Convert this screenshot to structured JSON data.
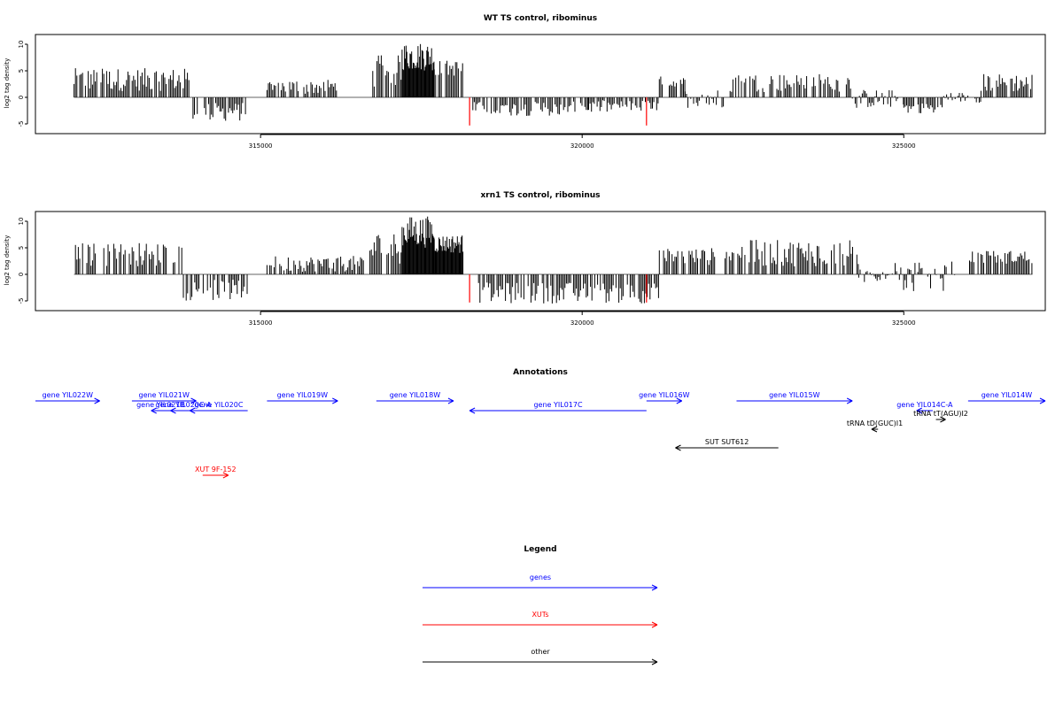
{
  "chart_data": [
    {
      "type": "bar",
      "title": "WT TS control, ribominus",
      "ylabel": "log2 tag density",
      "xlim": [
        311500,
        327200
      ],
      "ylim": [
        -5.5,
        10.5
      ],
      "x_ticks": [
        315000,
        320000,
        325000
      ],
      "y_ticks": [
        -5,
        0,
        5,
        10
      ],
      "baseline_color": "#999999",
      "bar_color": "#000000",
      "marker_color": "#ff0000",
      "markers": [
        {
          "x": 318250,
          "y": -5.3
        },
        {
          "x": 321000,
          "y": -5.3
        }
      ],
      "segments": [
        {
          "from": 312100,
          "to": 313900,
          "min": 1.2,
          "max": 5.5
        },
        {
          "from": 313950,
          "to": 314800,
          "min": -4.5,
          "max": -1.0
        },
        {
          "from": 315100,
          "to": 316200,
          "min": 0.5,
          "max": 3.5
        },
        {
          "from": 316700,
          "to": 317200,
          "min": 2.0,
          "max": 8.0
        },
        {
          "from": 317200,
          "to": 317700,
          "min": 5.0,
          "max": 10.5
        },
        {
          "from": 317700,
          "to": 318150,
          "min": 4.0,
          "max": 7.0
        },
        {
          "from": 318300,
          "to": 320100,
          "min": -3.5,
          "max": -0.8
        },
        {
          "from": 320100,
          "to": 321200,
          "min": -3.0,
          "max": -0.5
        },
        {
          "from": 321200,
          "to": 321600,
          "min": 1.5,
          "max": 4.0
        },
        {
          "from": 321600,
          "to": 322200,
          "min": -2.0,
          "max": 1.5
        },
        {
          "from": 322300,
          "to": 324200,
          "min": 1.0,
          "max": 4.5
        },
        {
          "from": 324200,
          "to": 325000,
          "min": -2.0,
          "max": 1.5
        },
        {
          "from": 325000,
          "to": 325600,
          "min": -3.0,
          "max": -1.0
        },
        {
          "from": 325600,
          "to": 326200,
          "min": -1.0,
          "max": 1.0
        },
        {
          "from": 326200,
          "to": 327000,
          "min": 1.0,
          "max": 4.5
        }
      ]
    },
    {
      "type": "bar",
      "title": "xrn1 TS control, ribominus",
      "ylabel": "log2 tag density",
      "xlim": [
        311500,
        327200
      ],
      "ylim": [
        -5.5,
        10.5
      ],
      "x_ticks": [
        315000,
        320000,
        325000
      ],
      "y_ticks": [
        -5,
        0,
        5,
        10
      ],
      "baseline_color": "#999999",
      "bar_color": "#000000",
      "marker_color": "#ff0000",
      "markers": [
        {
          "x": 318250,
          "y": -5.3
        },
        {
          "x": 321000,
          "y": -5.3
        }
      ],
      "segments": [
        {
          "from": 312100,
          "to": 313800,
          "min": 1.5,
          "max": 6.0
        },
        {
          "from": 313800,
          "to": 314800,
          "min": -5.0,
          "max": -1.0
        },
        {
          "from": 315100,
          "to": 316600,
          "min": 0.5,
          "max": 3.5
        },
        {
          "from": 316700,
          "to": 317200,
          "min": 2.0,
          "max": 8.0
        },
        {
          "from": 317200,
          "to": 317700,
          "min": 5.0,
          "max": 11.0
        },
        {
          "from": 317700,
          "to": 318150,
          "min": 4.0,
          "max": 7.5
        },
        {
          "from": 318300,
          "to": 321200,
          "min": -5.5,
          "max": -1.5
        },
        {
          "from": 321200,
          "to": 322100,
          "min": 1.5,
          "max": 5.0
        },
        {
          "from": 322200,
          "to": 324300,
          "min": 1.5,
          "max": 6.5
        },
        {
          "from": 324300,
          "to": 324800,
          "min": -1.5,
          "max": 1.0
        },
        {
          "from": 324800,
          "to": 325800,
          "min": -3.5,
          "max": 2.5
        },
        {
          "from": 326000,
          "to": 327000,
          "min": 2.0,
          "max": 4.5
        }
      ]
    }
  ],
  "annotations": {
    "title": "Annotations",
    "features": [
      {
        "label": "gene YIL022W",
        "start": 311500,
        "end": 312500,
        "strand": "+",
        "color": "#0000ff",
        "row": 0
      },
      {
        "label": "gene YIL021W",
        "start": 313000,
        "end": 314000,
        "strand": "+",
        "color": "#0000ff",
        "row": 0
      },
      {
        "label": "gene YIL021B",
        "start": 313300,
        "end": 313600,
        "strand": "-",
        "color": "#0000ff",
        "row": 1
      },
      {
        "label": "gene YIL020C-A",
        "start": 313600,
        "end": 314000,
        "strand": "-",
        "color": "#0000ff",
        "row": 1
      },
      {
        "label": "gene YIL020C",
        "start": 313900,
        "end": 314800,
        "strand": "-",
        "color": "#0000ff",
        "row": 1
      },
      {
        "label": "gene YIL019W",
        "start": 315100,
        "end": 316200,
        "strand": "+",
        "color": "#0000ff",
        "row": 0
      },
      {
        "label": "gene YIL018W",
        "start": 316800,
        "end": 318000,
        "strand": "+",
        "color": "#0000ff",
        "row": 0
      },
      {
        "label": "gene YIL017C",
        "start": 318250,
        "end": 321000,
        "strand": "-",
        "color": "#0000ff",
        "row": 1
      },
      {
        "label": "gene YIL016W",
        "start": 321000,
        "end": 321550,
        "strand": "+",
        "color": "#0000ff",
        "row": 0
      },
      {
        "label": "gene YIL015W",
        "start": 322400,
        "end": 324200,
        "strand": "+",
        "color": "#0000ff",
        "row": 0
      },
      {
        "label": "tRNA tD(GUC)I1",
        "start": 324500,
        "end": 324600,
        "strand": "-",
        "color": "#000000",
        "row": 3
      },
      {
        "label": "gene YIL014C-A",
        "start": 325200,
        "end": 325450,
        "strand": "-",
        "color": "#0000ff",
        "row": 1
      },
      {
        "label": "tRNA tT(AGU)I2",
        "start": 325500,
        "end": 325650,
        "strand": "+",
        "color": "#000000",
        "row": 2
      },
      {
        "label": "gene YIL014W",
        "start": 326000,
        "end": 327200,
        "strand": "+",
        "color": "#0000ff",
        "row": 0
      },
      {
        "label": "SUT SUT612",
        "start": 321450,
        "end": 323050,
        "strand": "-",
        "color": "#000000",
        "row": 4
      },
      {
        "label": "XUT 9F-152",
        "start": 314100,
        "end": 314500,
        "strand": "+",
        "color": "#ff0000",
        "row": 6
      }
    ]
  },
  "legend": {
    "title": "Legend",
    "entries": [
      {
        "label": "genes",
        "color": "#0000ff"
      },
      {
        "label": "XUTs",
        "color": "#ff0000"
      },
      {
        "label": "other",
        "color": "#000000"
      }
    ]
  }
}
